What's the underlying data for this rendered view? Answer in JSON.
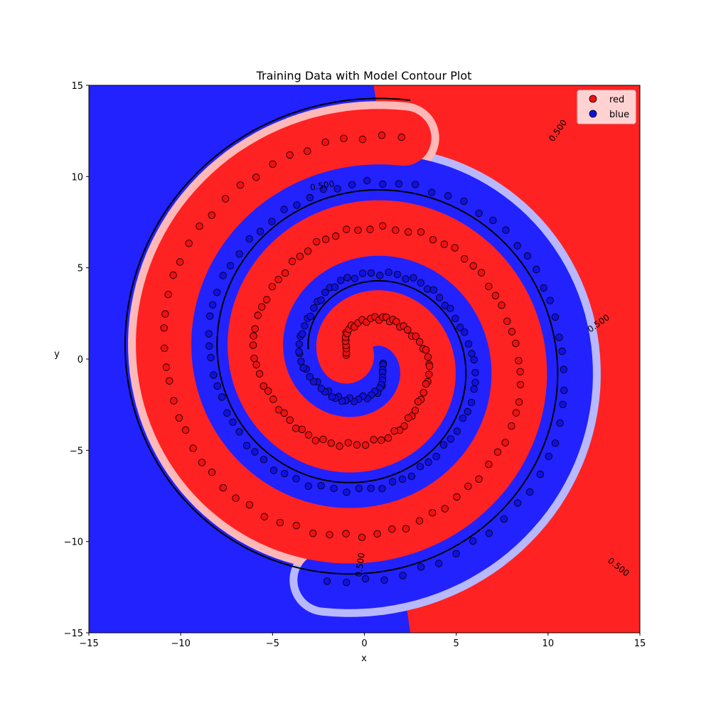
{
  "chart_data": {
    "type": "scatter",
    "title": "Training Data with Model Contour Plot",
    "xlabel": "x",
    "ylabel": "y",
    "xlim": [
      -15,
      15
    ],
    "ylim": [
      -15,
      15
    ],
    "xticks": [
      -15,
      -10,
      -5,
      0,
      5,
      10,
      15
    ],
    "yticks": [
      -15,
      -10,
      -5,
      0,
      5,
      10,
      15
    ],
    "xtick_labels": [
      "−15",
      "−10",
      "−5",
      "0",
      "5",
      "10",
      "15"
    ],
    "ytick_labels": [
      "−15",
      "−10",
      "−5",
      "0",
      "5",
      "10",
      "15"
    ],
    "grid": false,
    "legend_position": "top-right",
    "contour_level_label": "0.500",
    "background_colors": {
      "red": "#ff2222",
      "blue": "#2222ff"
    },
    "series": [
      {
        "name": "red",
        "color": "#ee1111",
        "spiral": {
          "r_start": 1.0,
          "r_end": 12.3,
          "theta_start_deg": 170,
          "turns": 2.25,
          "n": 160
        }
      },
      {
        "name": "blue",
        "color": "#1111dd",
        "spiral": {
          "r_start": 1.0,
          "r_end": 12.3,
          "theta_start_deg": -10,
          "turns": 2.25,
          "n": 160
        }
      }
    ]
  }
}
